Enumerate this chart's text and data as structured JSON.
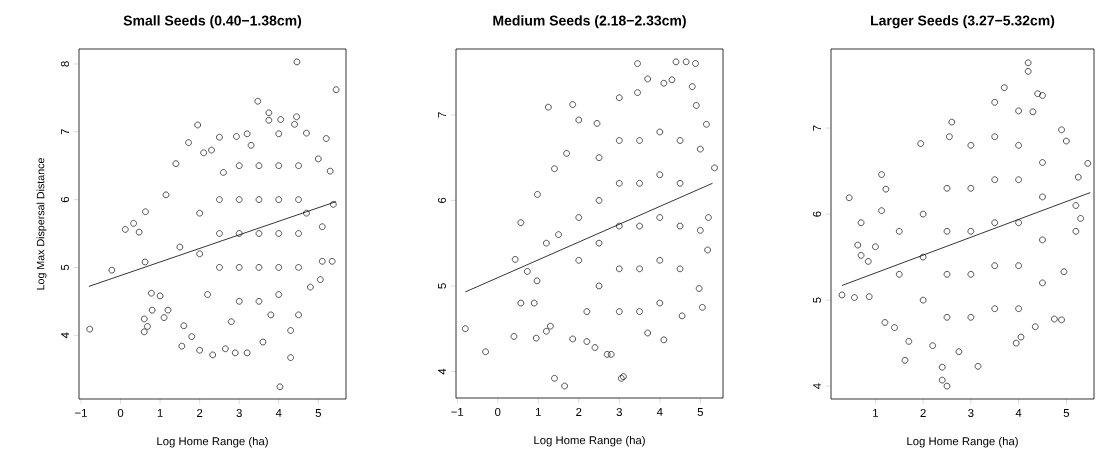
{
  "chart_data": [
    {
      "type": "scatter",
      "title": "Small Seeds (0.40−1.38cm)",
      "xlabel": "Log Home Range (ha)",
      "ylabel": "Log Max Dispersal Distance",
      "xlim": [
        -1.05,
        5.7
      ],
      "ylim": [
        3.06,
        8.22
      ],
      "xticks": [
        {
          "value": -1,
          "label": "−1"
        },
        0,
        1,
        2,
        3,
        4,
        5
      ],
      "yticks": [
        4,
        5,
        6,
        7,
        8
      ],
      "series": [
        {
          "marker": "circle",
          "color": "#000000",
          "x": [
            -0.78,
            -0.22,
            0.12,
            0.33,
            0.47,
            0.63,
            0.62,
            0.6,
            0.6,
            0.68,
            0.8,
            0.78,
            1.0,
            1.1,
            1.15,
            1.2,
            1.4,
            1.55,
            1.6,
            1.72,
            1.8,
            1.95,
            2.0,
            2.1,
            2.3,
            2.33,
            2.5,
            2.65,
            2.9,
            2.93,
            3.2,
            3.2,
            3.47,
            3.6,
            3.75,
            3.75,
            4.0,
            4.05,
            4.03,
            4.3,
            4.3,
            4.4,
            4.45,
            4.46,
            4.5,
            4.7,
            4.8,
            5.05,
            5.1,
            5.2,
            5.35,
            5.3,
            5.45,
            5.38,
            5.0,
            5.1,
            2.5,
            2.5,
            2.5,
            3.0,
            3.0,
            3.0,
            3.0,
            3.0,
            3.5,
            3.5,
            3.5,
            3.5,
            3.5,
            4.0,
            4.0,
            4.0,
            4.0,
            4.0,
            4.5,
            4.5,
            4.5,
            4.5,
            2.0,
            2.0,
            1.5,
            2.2,
            2.8,
            3.8,
            4.7,
            3.3,
            2.6
          ],
          "values": [
            4.09,
            4.96,
            5.56,
            5.65,
            5.52,
            5.82,
            5.08,
            4.05,
            4.24,
            4.13,
            4.37,
            4.62,
            4.58,
            4.26,
            6.07,
            4.37,
            6.53,
            3.84,
            4.14,
            6.84,
            3.98,
            7.1,
            3.78,
            6.69,
            6.73,
            3.71,
            6.92,
            3.8,
            3.74,
            6.93,
            3.74,
            6.97,
            7.45,
            3.9,
            7.28,
            7.17,
            6.97,
            7.18,
            3.24,
            3.67,
            4.07,
            7.11,
            7.22,
            8.03,
            4.3,
            6.98,
            4.71,
            4.82,
            5.09,
            6.9,
            5.09,
            6.42,
            7.62,
            5.93,
            6.6,
            5.6,
            5.0,
            5.5,
            6.0,
            4.5,
            5.0,
            5.5,
            6.0,
            6.5,
            4.5,
            5.0,
            5.5,
            6.0,
            6.5,
            4.6,
            5.0,
            5.5,
            6.0,
            6.5,
            5.0,
            5.5,
            6.0,
            6.5,
            5.2,
            5.8,
            5.3,
            4.6,
            4.2,
            4.3,
            5.8,
            6.8,
            6.4
          ]
        },
        {
          "type": "line",
          "marker": "none",
          "color": "#000000",
          "x": [
            -0.8,
            5.45
          ],
          "values": [
            4.72,
            5.97
          ]
        }
      ]
    },
    {
      "type": "scatter",
      "title": "Medium Seeds (2.18−2.33cm)",
      "xlabel": "Log Home Range (ha)",
      "xlim": [
        -1.03,
        5.56
      ],
      "ylim": [
        3.69,
        7.77
      ],
      "xticks": [
        {
          "value": -1,
          "label": "−1"
        },
        0,
        1,
        2,
        3,
        4,
        5
      ],
      "yticks": [
        4,
        5,
        6,
        7
      ],
      "series": [
        {
          "marker": "circle",
          "color": "#000000",
          "x": [
            -0.8,
            -0.3,
            0.4,
            0.43,
            0.57,
            0.57,
            0.73,
            0.9,
            0.95,
            0.97,
            0.98,
            1.2,
            1.25,
            1.3,
            1.4,
            1.4,
            1.65,
            1.7,
            1.85,
            1.85,
            2.0,
            2.2,
            2.4,
            2.45,
            2.7,
            2.8,
            3.0,
            3.05,
            3.1,
            3.45,
            3.45,
            3.7,
            3.7,
            4.1,
            4.1,
            4.3,
            4.4,
            4.55,
            4.65,
            4.8,
            4.88,
            4.9,
            4.97,
            5.05,
            5.15,
            5.18,
            5.35,
            5.2,
            5.0,
            5.0,
            2.5,
            2.5,
            2.5,
            2.5,
            3.0,
            3.0,
            3.0,
            3.0,
            3.0,
            3.5,
            3.5,
            3.5,
            3.5,
            3.5,
            4.0,
            4.0,
            4.0,
            4.0,
            4.0,
            4.5,
            4.5,
            4.5,
            4.5,
            2.0,
            2.0,
            1.5,
            1.2,
            2.2
          ],
          "values": [
            4.5,
            4.23,
            4.41,
            5.31,
            5.74,
            4.8,
            5.17,
            4.8,
            4.39,
            5.06,
            6.07,
            4.47,
            7.09,
            4.53,
            3.92,
            6.37,
            3.83,
            6.55,
            7.12,
            4.38,
            6.94,
            4.35,
            4.28,
            6.9,
            4.2,
            4.2,
            7.2,
            3.92,
            3.94,
            7.6,
            7.26,
            7.42,
            4.45,
            4.37,
            7.37,
            7.41,
            7.62,
            4.65,
            7.62,
            7.33,
            7.6,
            7.11,
            4.97,
            4.75,
            6.89,
            5.42,
            6.38,
            5.8,
            5.65,
            6.6,
            5.0,
            5.5,
            6.0,
            6.5,
            4.7,
            5.2,
            5.7,
            6.2,
            6.7,
            4.7,
            5.2,
            5.7,
            6.2,
            6.7,
            4.8,
            5.3,
            5.8,
            6.3,
            6.8,
            5.2,
            5.7,
            6.2,
            6.7,
            5.3,
            5.8,
            5.6,
            5.5,
            4.7
          ]
        },
        {
          "type": "line",
          "marker": "none",
          "color": "#000000",
          "x": [
            -0.8,
            5.3
          ],
          "values": [
            4.93,
            6.2
          ]
        }
      ]
    },
    {
      "type": "scatter",
      "title": "Larger Seeds (3.27−5.32cm)",
      "xlabel": "Log Home Range (ha)",
      "xlim": [
        0.07,
        5.58
      ],
      "ylim": [
        3.85,
        7.92
      ],
      "xticks": [
        1,
        2,
        3,
        4,
        5
      ],
      "yticks": [
        4,
        5,
        6,
        7
      ],
      "series": [
        {
          "marker": "circle",
          "color": "#000000",
          "x": [
            0.3,
            0.45,
            0.56,
            0.63,
            0.7,
            0.7,
            0.85,
            0.87,
            1.0,
            1.13,
            1.13,
            1.2,
            1.22,
            1.4,
            1.62,
            1.7,
            1.95,
            2.2,
            2.4,
            2.4,
            2.5,
            2.55,
            2.6,
            2.75,
            3.15,
            3.5,
            3.7,
            3.95,
            4.0,
            4.05,
            4.2,
            4.2,
            4.3,
            4.35,
            4.4,
            4.5,
            4.75,
            4.9,
            4.9,
            5.0,
            5.2,
            5.25,
            5.3,
            5.45,
            5.2,
            4.95,
            2.0,
            2.0,
            2.0,
            2.5,
            2.5,
            2.5,
            2.5,
            3.0,
            3.0,
            3.0,
            3.0,
            3.0,
            3.5,
            3.5,
            3.5,
            3.5,
            3.5,
            4.0,
            4.0,
            4.0,
            4.0,
            4.0,
            4.5,
            4.5,
            4.5,
            4.5,
            1.5,
            1.5
          ],
          "values": [
            5.06,
            6.19,
            5.03,
            5.64,
            5.9,
            5.52,
            5.45,
            5.04,
            5.62,
            6.46,
            6.04,
            4.74,
            6.29,
            4.68,
            4.3,
            4.52,
            6.82,
            4.47,
            4.22,
            4.07,
            4.0,
            6.9,
            7.07,
            4.4,
            4.23,
            7.3,
            7.47,
            4.5,
            7.2,
            4.57,
            7.76,
            7.66,
            7.19,
            4.69,
            7.4,
            7.38,
            4.78,
            4.77,
            6.98,
            6.85,
            5.8,
            6.43,
            5.95,
            6.59,
            6.1,
            5.33,
            5.0,
            5.5,
            6.0,
            4.8,
            5.3,
            5.8,
            6.3,
            4.8,
            5.3,
            5.8,
            6.3,
            6.8,
            4.9,
            5.4,
            5.9,
            6.4,
            6.9,
            4.9,
            5.4,
            5.9,
            6.4,
            6.8,
            5.2,
            5.7,
            6.2,
            6.6,
            5.3,
            5.8
          ]
        },
        {
          "type": "line",
          "marker": "none",
          "color": "#000000",
          "x": [
            0.3,
            5.5
          ],
          "values": [
            5.17,
            6.25
          ]
        }
      ]
    }
  ]
}
